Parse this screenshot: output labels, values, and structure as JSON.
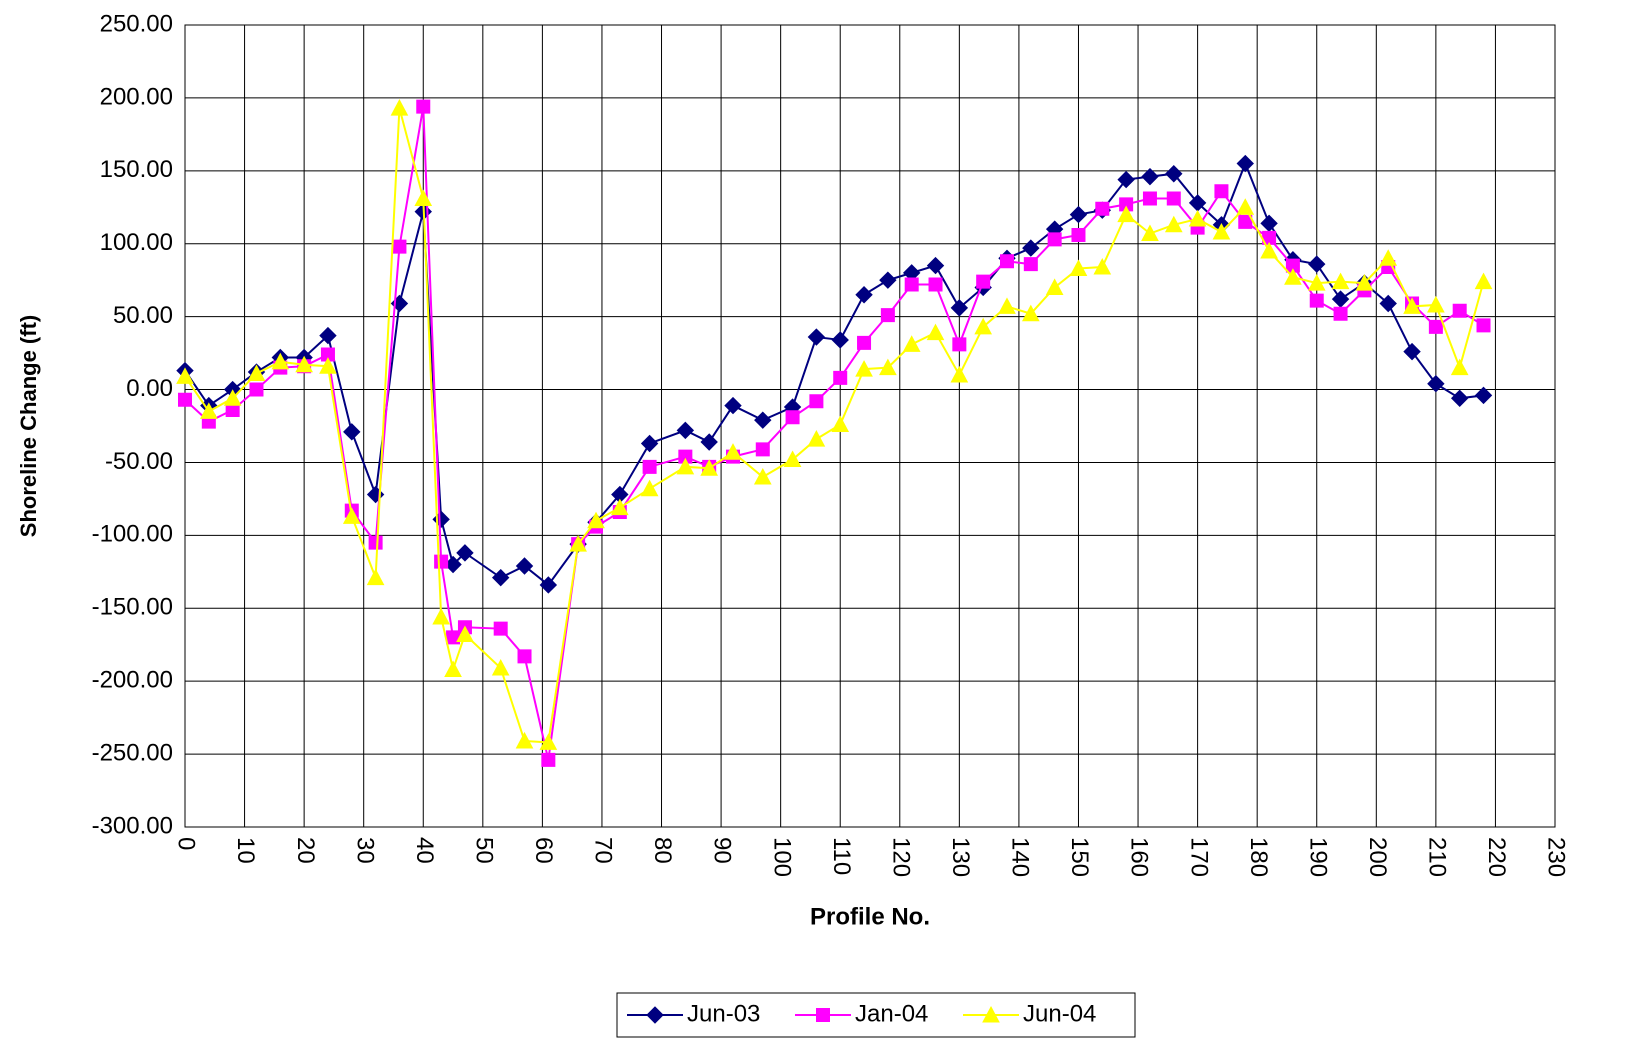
{
  "chart_data": {
    "type": "line",
    "xlabel": "Profile No.",
    "ylabel": "Shoreline Change (ft)",
    "xlim": [
      0,
      230
    ],
    "xticks": [
      0,
      10,
      20,
      30,
      40,
      50,
      60,
      70,
      80,
      90,
      100,
      110,
      120,
      130,
      140,
      150,
      160,
      170,
      180,
      190,
      200,
      210,
      220,
      230
    ],
    "ylim": [
      -300,
      250
    ],
    "yticks": [
      {
        "value": -300,
        "label": "-300.00"
      },
      {
        "value": -250,
        "label": "-250.00"
      },
      {
        "value": -200,
        "label": "-200.00"
      },
      {
        "value": -150,
        "label": "-150.00"
      },
      {
        "value": -100,
        "label": "-100.00"
      },
      {
        "value": -50,
        "label": "-50.00"
      },
      {
        "value": 0,
        "label": "0.00"
      },
      {
        "value": 50,
        "label": "50.00"
      },
      {
        "value": 100,
        "label": "100.00"
      },
      {
        "value": 150,
        "label": "150.00"
      },
      {
        "value": 200,
        "label": "200.00"
      },
      {
        "value": 250,
        "label": "250.00"
      }
    ],
    "grid": true,
    "legend": "bottom",
    "x": [
      0,
      4,
      8,
      12,
      16,
      20,
      24,
      28,
      32,
      36,
      40,
      43,
      45,
      47,
      53,
      57,
      61,
      66,
      69,
      73,
      78,
      84,
      88,
      92,
      97,
      102,
      106,
      110,
      114,
      118,
      122,
      126,
      130,
      134,
      138,
      142,
      146,
      150,
      154,
      158,
      162,
      166,
      170,
      174,
      178,
      182,
      186,
      190,
      194,
      198,
      202,
      206,
      210,
      214,
      218
    ],
    "series": [
      {
        "name": "Jun-03",
        "color": "#000080",
        "marker": "diamond",
        "values": [
          13,
          -11,
          0,
          12,
          22,
          22,
          37,
          -29,
          -72,
          59,
          122,
          -89,
          -120,
          -112,
          -129,
          -121,
          -134,
          -106,
          -91,
          -72,
          -37,
          -28,
          -36,
          -11,
          -21,
          -12,
          36,
          34,
          65,
          75,
          80,
          85,
          56,
          70,
          90,
          97,
          110,
          120,
          123,
          144,
          146,
          148,
          128,
          113,
          155,
          114,
          89,
          86,
          62,
          73,
          59,
          26,
          4,
          -6,
          -4
        ]
      },
      {
        "name": "Jan-04",
        "color": "#ff00ff",
        "marker": "square",
        "values": [
          -7,
          -22,
          -14,
          0,
          15,
          16,
          24,
          -83,
          -105,
          98,
          194,
          -118,
          -170,
          -163,
          -164,
          -183,
          -254,
          -106,
          -94,
          -84,
          -53,
          -46,
          -53,
          -46,
          -41,
          -19,
          -8,
          8,
          32,
          51,
          72,
          72,
          31,
          74,
          88,
          86,
          103,
          106,
          124,
          127,
          131,
          131,
          111,
          136,
          115,
          104,
          85,
          61,
          52,
          68,
          84,
          59,
          43,
          54,
          44
        ]
      },
      {
        "name": "Jun-04",
        "color": "#ffff00",
        "marker": "triangle",
        "values": [
          9,
          -15,
          -6,
          11,
          19,
          17,
          16,
          -87,
          -129,
          193,
          131,
          -156,
          -192,
          -168,
          -191,
          -241,
          -242,
          -106,
          -90,
          -81,
          -68,
          -53,
          -54,
          -43,
          -60,
          -48,
          -34,
          -24,
          14,
          15,
          31,
          39,
          10,
          43,
          57,
          52,
          70,
          83,
          84,
          120,
          107,
          113,
          117,
          108,
          125,
          95,
          77,
          73,
          74,
          73,
          90,
          57,
          58,
          15,
          74
        ]
      }
    ]
  }
}
